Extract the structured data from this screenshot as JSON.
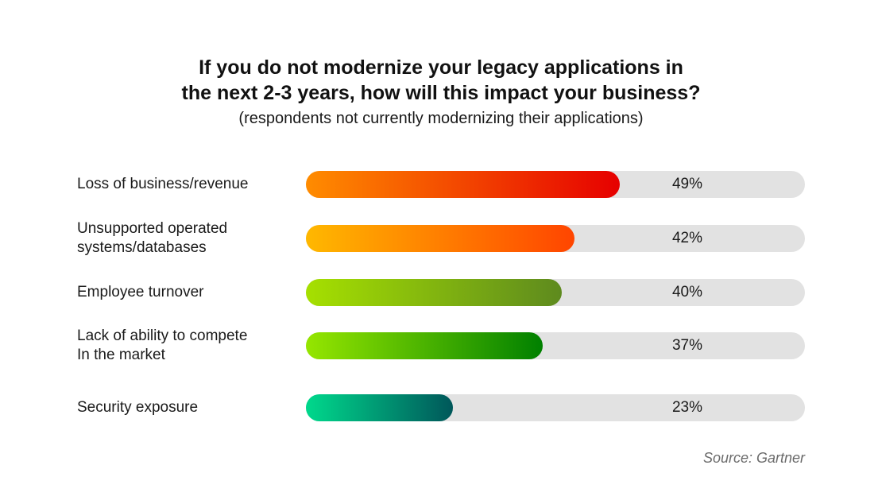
{
  "header": {
    "title_line1": "If you do not modernize your legacy applications in",
    "title_line2": "the next 2-3 years, how will this impact your business?",
    "subtitle": "(respondents not currently modernizing their applications)"
  },
  "footer": {
    "source": "Source: Gartner"
  },
  "colors": {
    "track": "#e2e2e2",
    "gradients": [
      [
        "#ff8c00",
        "#e60000"
      ],
      [
        "#ffb800",
        "#ff4500"
      ],
      [
        "#a6e000",
        "#5e8a1e"
      ],
      [
        "#96e600",
        "#008000"
      ],
      [
        "#00d98c",
        "#00575a"
      ]
    ]
  },
  "chart_data": {
    "type": "bar",
    "orientation": "horizontal",
    "title": "If you do not modernize your legacy applications in the next 2-3 years, how will this impact your business?",
    "subtitle": "(respondents not currently modernizing their applications)",
    "categories": [
      [
        "Loss of business/revenue"
      ],
      [
        "Unsupported operated",
        "systems/databases"
      ],
      [
        "Employee turnover"
      ],
      [
        "Lack of ability to compete",
        "In the market"
      ],
      [
        "Security exposure"
      ]
    ],
    "values": [
      49,
      42,
      40,
      37,
      23
    ],
    "value_labels": [
      "49%",
      "42%",
      "40%",
      "37%",
      "23%"
    ],
    "unit": "%",
    "xlim": [
      0,
      78
    ],
    "grid": false,
    "legend": "none"
  }
}
